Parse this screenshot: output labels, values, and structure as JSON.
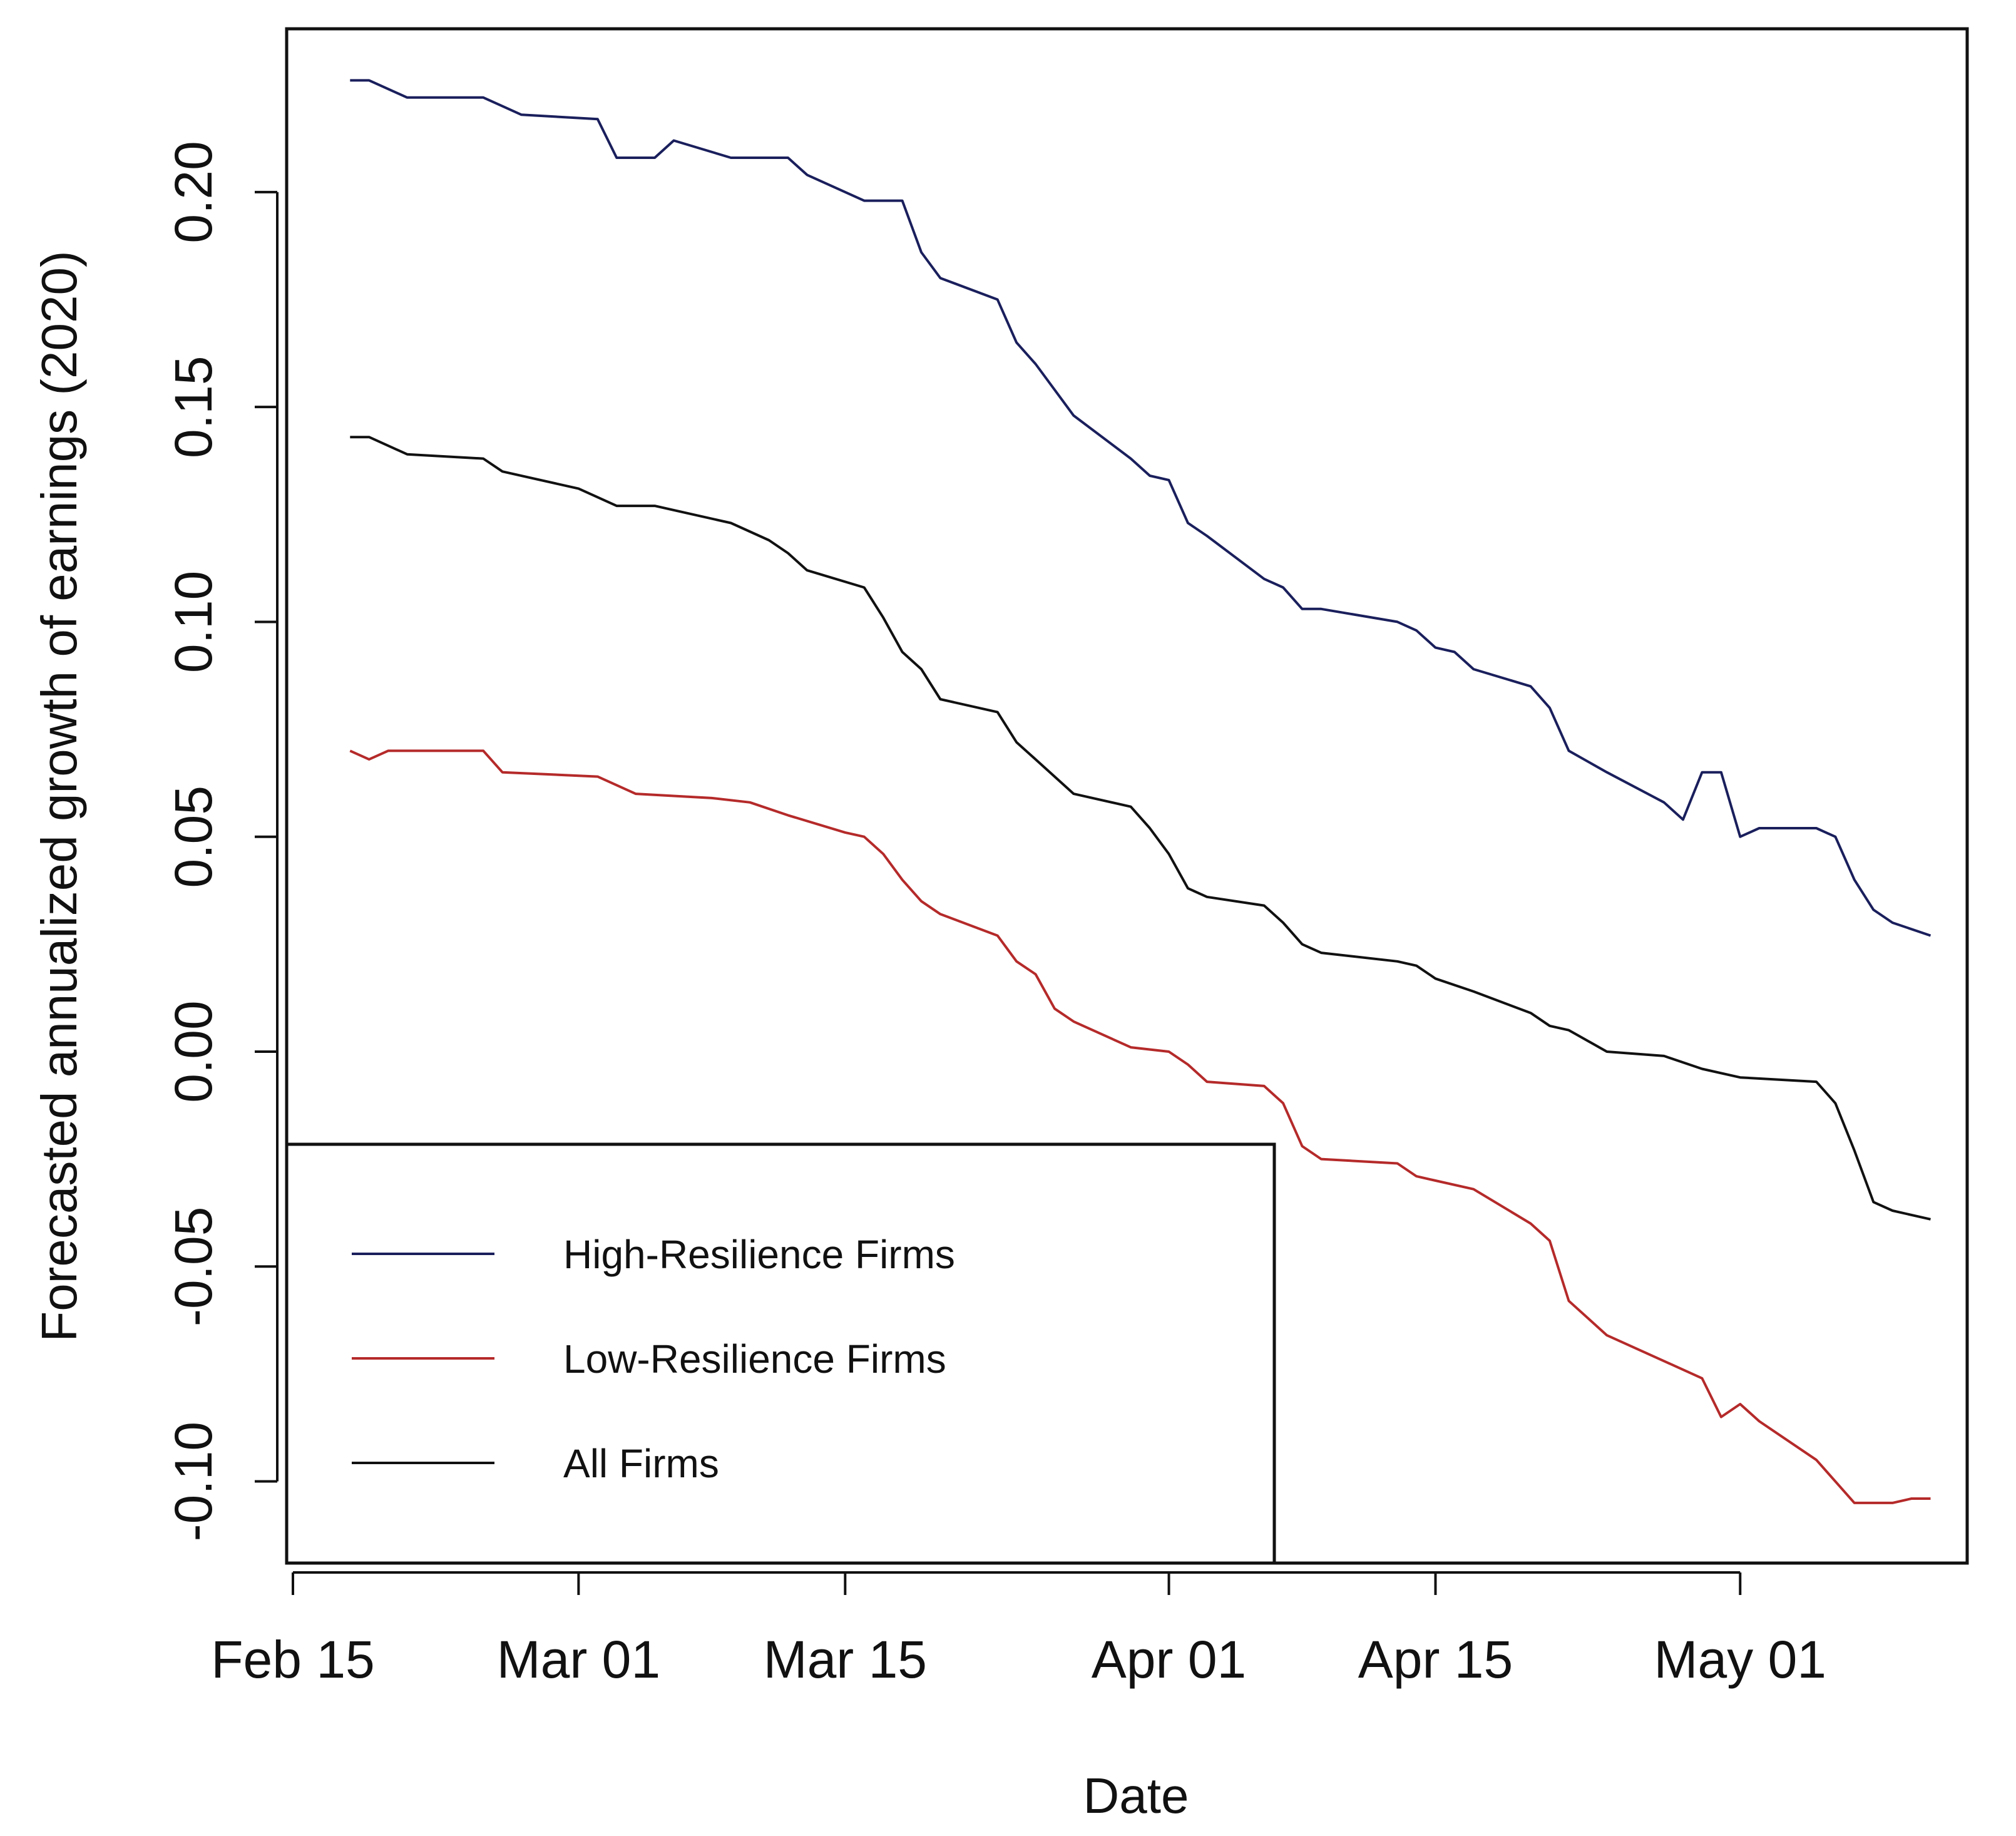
{
  "chart_data": {
    "type": "line",
    "xlabel": "Date",
    "ylabel": "Forecasted annualized growth of earnings (2020)",
    "x_ticks": [
      {
        "date": "2020-02-15",
        "label": "Feb 15"
      },
      {
        "date": "2020-03-01",
        "label": "Mar 01"
      },
      {
        "date": "2020-03-15",
        "label": "Mar 15"
      },
      {
        "date": "2020-04-01",
        "label": "Apr 01"
      },
      {
        "date": "2020-04-15",
        "label": "Apr 15"
      },
      {
        "date": "2020-05-01",
        "label": "May 01"
      }
    ],
    "y_ticks": [
      {
        "value": -0.1,
        "label": "-0.10"
      },
      {
        "value": -0.05,
        "label": "-0.05"
      },
      {
        "value": 0.0,
        "label": "0.00"
      },
      {
        "value": 0.05,
        "label": "0.05"
      },
      {
        "value": 0.1,
        "label": "0.10"
      },
      {
        "value": 0.15,
        "label": "0.15"
      },
      {
        "value": 0.2,
        "label": "0.20"
      }
    ],
    "xlim": [
      "2020-02-15",
      "2020-05-11"
    ],
    "ylim": [
      -0.119,
      0.238
    ],
    "grid": false,
    "legend_position": "bottom-left",
    "series": [
      {
        "name": "High-Resilience Firms",
        "color": "#1a1f5c",
        "points": [
          [
            "2020-02-18",
            0.226
          ],
          [
            "2020-02-19",
            0.226
          ],
          [
            "2020-02-21",
            0.222
          ],
          [
            "2020-02-25",
            0.222
          ],
          [
            "2020-02-26",
            0.22
          ],
          [
            "2020-02-27",
            0.218
          ],
          [
            "2020-03-02",
            0.217
          ],
          [
            "2020-03-03",
            0.208
          ],
          [
            "2020-03-04",
            0.208
          ],
          [
            "2020-03-05",
            0.208
          ],
          [
            "2020-03-06",
            0.212
          ],
          [
            "2020-03-09",
            0.208
          ],
          [
            "2020-03-11",
            0.208
          ],
          [
            "2020-03-12",
            0.208
          ],
          [
            "2020-03-13",
            0.204
          ],
          [
            "2020-03-16",
            0.198
          ],
          [
            "2020-03-18",
            0.198
          ],
          [
            "2020-03-19",
            0.186
          ],
          [
            "2020-03-20",
            0.18
          ],
          [
            "2020-03-23",
            0.175
          ],
          [
            "2020-03-24",
            0.165
          ],
          [
            "2020-03-25",
            0.16
          ],
          [
            "2020-03-27",
            0.148
          ],
          [
            "2020-03-30",
            0.138
          ],
          [
            "2020-03-31",
            0.134
          ],
          [
            "2020-04-01",
            0.133
          ],
          [
            "2020-04-02",
            0.123
          ],
          [
            "2020-04-03",
            0.12
          ],
          [
            "2020-04-06",
            0.11
          ],
          [
            "2020-04-07",
            0.108
          ],
          [
            "2020-04-08",
            0.103
          ],
          [
            "2020-04-09",
            0.103
          ],
          [
            "2020-04-13",
            0.1
          ],
          [
            "2020-04-14",
            0.098
          ],
          [
            "2020-04-15",
            0.094
          ],
          [
            "2020-04-16",
            0.093
          ],
          [
            "2020-04-17",
            0.089
          ],
          [
            "2020-04-20",
            0.085
          ],
          [
            "2020-04-21",
            0.08
          ],
          [
            "2020-04-22",
            0.07
          ],
          [
            "2020-04-24",
            0.065
          ],
          [
            "2020-04-27",
            0.058
          ],
          [
            "2020-04-28",
            0.054
          ],
          [
            "2020-04-29",
            0.065
          ],
          [
            "2020-04-30",
            0.065
          ],
          [
            "2020-05-01",
            0.05
          ],
          [
            "2020-05-02",
            0.052
          ],
          [
            "2020-05-03",
            0.052
          ],
          [
            "2020-05-05",
            0.052
          ],
          [
            "2020-05-06",
            0.05
          ],
          [
            "2020-05-07",
            0.04
          ],
          [
            "2020-05-08",
            0.033
          ],
          [
            "2020-05-09",
            0.03
          ],
          [
            "2020-05-11",
            0.027
          ]
        ]
      },
      {
        "name": "Low-Resilience Firms",
        "color": "#b52a2a",
        "points": [
          [
            "2020-02-18",
            0.07
          ],
          [
            "2020-02-19",
            0.068
          ],
          [
            "2020-02-20",
            0.07
          ],
          [
            "2020-02-24",
            0.07
          ],
          [
            "2020-02-25",
            0.07
          ],
          [
            "2020-02-26",
            0.065
          ],
          [
            "2020-03-02",
            0.064
          ],
          [
            "2020-03-03",
            0.062
          ],
          [
            "2020-03-04",
            0.06
          ],
          [
            "2020-03-08",
            0.059
          ],
          [
            "2020-03-10",
            0.058
          ],
          [
            "2020-03-12",
            0.055
          ],
          [
            "2020-03-15",
            0.051
          ],
          [
            "2020-03-16",
            0.05
          ],
          [
            "2020-03-17",
            0.046
          ],
          [
            "2020-03-18",
            0.04
          ],
          [
            "2020-03-19",
            0.035
          ],
          [
            "2020-03-20",
            0.032
          ],
          [
            "2020-03-23",
            0.027
          ],
          [
            "2020-03-24",
            0.021
          ],
          [
            "2020-03-25",
            0.018
          ],
          [
            "2020-03-26",
            0.01
          ],
          [
            "2020-03-27",
            0.007
          ],
          [
            "2020-03-30",
            0.001
          ],
          [
            "2020-04-01",
            0.0
          ],
          [
            "2020-04-02",
            -0.003
          ],
          [
            "2020-04-03",
            -0.007
          ],
          [
            "2020-04-06",
            -0.008
          ],
          [
            "2020-04-07",
            -0.012
          ],
          [
            "2020-04-08",
            -0.022
          ],
          [
            "2020-04-09",
            -0.025
          ],
          [
            "2020-04-13",
            -0.026
          ],
          [
            "2020-04-14",
            -0.029
          ],
          [
            "2020-04-15",
            -0.03
          ],
          [
            "2020-04-17",
            -0.032
          ],
          [
            "2020-04-20",
            -0.04
          ],
          [
            "2020-04-21",
            -0.044
          ],
          [
            "2020-04-22",
            -0.058
          ],
          [
            "2020-04-24",
            -0.066
          ],
          [
            "2020-04-27",
            -0.072
          ],
          [
            "2020-04-29",
            -0.076
          ],
          [
            "2020-04-30",
            -0.085
          ],
          [
            "2020-05-01",
            -0.082
          ],
          [
            "2020-05-02",
            -0.086
          ],
          [
            "2020-05-05",
            -0.095
          ],
          [
            "2020-05-06",
            -0.1
          ],
          [
            "2020-05-07",
            -0.105
          ],
          [
            "2020-05-09",
            -0.105
          ],
          [
            "2020-05-10",
            -0.104
          ],
          [
            "2020-05-11",
            -0.104
          ]
        ]
      },
      {
        "name": "All Firms",
        "color": "#111111",
        "points": [
          [
            "2020-02-18",
            0.143
          ],
          [
            "2020-02-19",
            0.143
          ],
          [
            "2020-02-21",
            0.139
          ],
          [
            "2020-02-25",
            0.138
          ],
          [
            "2020-02-26",
            0.135
          ],
          [
            "2020-03-01",
            0.131
          ],
          [
            "2020-03-02",
            0.129
          ],
          [
            "2020-03-03",
            0.127
          ],
          [
            "2020-03-04",
            0.127
          ],
          [
            "2020-03-05",
            0.127
          ],
          [
            "2020-03-06",
            0.126
          ],
          [
            "2020-03-09",
            0.123
          ],
          [
            "2020-03-11",
            0.119
          ],
          [
            "2020-03-12",
            0.116
          ],
          [
            "2020-03-13",
            0.112
          ],
          [
            "2020-03-16",
            0.108
          ],
          [
            "2020-03-17",
            0.101
          ],
          [
            "2020-03-18",
            0.093
          ],
          [
            "2020-03-19",
            0.089
          ],
          [
            "2020-03-20",
            0.082
          ],
          [
            "2020-03-23",
            0.079
          ],
          [
            "2020-03-24",
            0.072
          ],
          [
            "2020-03-25",
            0.068
          ],
          [
            "2020-03-27",
            0.06
          ],
          [
            "2020-03-30",
            0.057
          ],
          [
            "2020-03-31",
            0.052
          ],
          [
            "2020-04-01",
            0.046
          ],
          [
            "2020-04-02",
            0.038
          ],
          [
            "2020-04-03",
            0.036
          ],
          [
            "2020-04-06",
            0.034
          ],
          [
            "2020-04-07",
            0.03
          ],
          [
            "2020-04-08",
            0.025
          ],
          [
            "2020-04-09",
            0.023
          ],
          [
            "2020-04-13",
            0.021
          ],
          [
            "2020-04-14",
            0.02
          ],
          [
            "2020-04-15",
            0.017
          ],
          [
            "2020-04-17",
            0.014
          ],
          [
            "2020-04-20",
            0.009
          ],
          [
            "2020-04-21",
            0.006
          ],
          [
            "2020-04-22",
            0.005
          ],
          [
            "2020-04-24",
            0.0
          ],
          [
            "2020-04-27",
            -0.001
          ],
          [
            "2020-04-29",
            -0.004
          ],
          [
            "2020-05-01",
            -0.006
          ],
          [
            "2020-05-05",
            -0.007
          ],
          [
            "2020-05-06",
            -0.012
          ],
          [
            "2020-05-07",
            -0.023
          ],
          [
            "2020-05-08",
            -0.035
          ],
          [
            "2020-05-09",
            -0.037
          ],
          [
            "2020-05-11",
            -0.039
          ]
        ]
      }
    ]
  }
}
